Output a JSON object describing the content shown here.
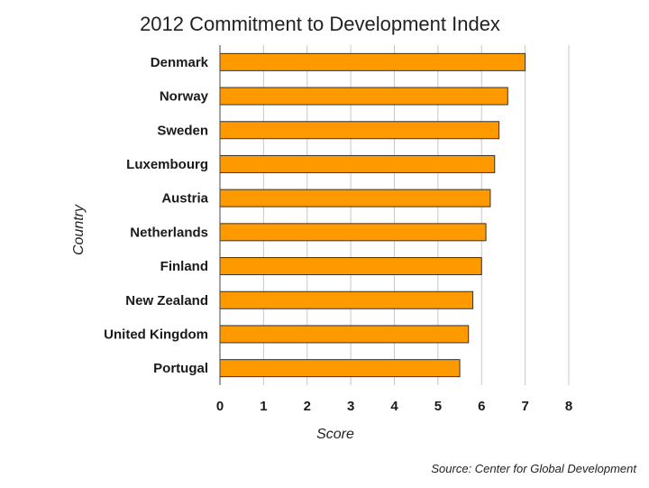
{
  "chart_data": {
    "type": "bar",
    "orientation": "horizontal",
    "title": "2012 Commitment to Development Index",
    "xlabel": "Score",
    "ylabel": "Country",
    "categories": [
      "Denmark",
      "Norway",
      "Sweden",
      "Luxembourg",
      "Austria",
      "Netherlands",
      "Finland",
      "New Zealand",
      "United Kingdom",
      "Portugal"
    ],
    "values": [
      7.0,
      6.6,
      6.4,
      6.3,
      6.2,
      6.1,
      6.0,
      5.8,
      5.7,
      5.5
    ],
    "xlim": [
      0,
      8
    ],
    "xticks": [
      "0",
      "1",
      "2",
      "3",
      "4",
      "5",
      "6",
      "7",
      "8"
    ],
    "grid": true,
    "bar_color": "#ff9900",
    "source": "Source: Center for Global Development"
  }
}
